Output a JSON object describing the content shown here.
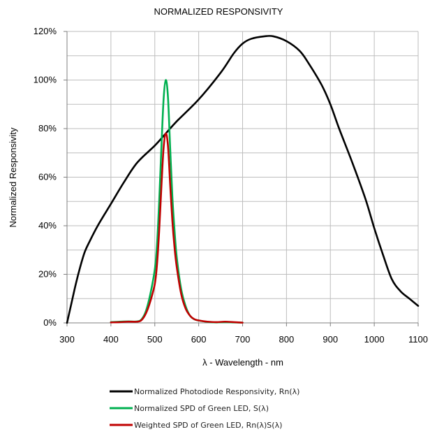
{
  "chart_data": {
    "type": "line",
    "title": "NORMALIZED RESPONSIVITY",
    "xlabel": "λ - Wavelength - nm",
    "ylabel": "Normalized Responsivity",
    "xlim": [
      300,
      1100
    ],
    "ylim": [
      0,
      120
    ],
    "x_ticks": [
      300,
      400,
      500,
      600,
      700,
      800,
      900,
      1000,
      1100
    ],
    "y_ticks": [
      0,
      20,
      40,
      60,
      80,
      100,
      120
    ],
    "y_tick_labels": [
      "0%",
      "20%",
      "40%",
      "60%",
      "80%",
      "100%",
      "120%"
    ],
    "grid": true,
    "legend_position": "bottom",
    "series": [
      {
        "name": "Normalized Photodiode Responsivity, Rn(λ)",
        "color": "#000000",
        "x": [
          300,
          310,
          320,
          330,
          340,
          350,
          370,
          400,
          430,
          460,
          500,
          525,
          550,
          600,
          650,
          680,
          700,
          720,
          750,
          770,
          800,
          830,
          850,
          880,
          900,
          920,
          950,
          980,
          1000,
          1020,
          1040,
          1060,
          1080,
          1100
        ],
        "y": [
          0,
          8,
          16,
          23,
          29,
          33,
          40,
          49,
          58,
          66,
          73,
          78,
          83,
          92,
          103,
          111,
          115,
          117,
          118,
          118,
          116,
          112,
          107,
          98,
          90,
          80,
          66,
          51,
          39,
          28,
          18,
          13,
          10,
          7
        ]
      },
      {
        "name": "Normalized SPD of Green LED, S(λ)",
        "color": "#00b050",
        "x": [
          400,
          420,
          440,
          460,
          470,
          480,
          490,
          500,
          505,
          510,
          515,
          520,
          525,
          530,
          535,
          540,
          545,
          550,
          560,
          570,
          580,
          590,
          600,
          620,
          640,
          660,
          680,
          700
        ],
        "y": [
          0.3,
          0.5,
          0.6,
          0.6,
          1.5,
          5,
          12,
          22,
          32,
          50,
          72,
          92,
          100,
          93,
          72,
          52,
          38,
          27,
          14,
          7,
          3,
          1.5,
          1,
          0.4,
          0.2,
          0.3,
          0.2,
          0.1
        ]
      },
      {
        "name": "Weighted SPD of Green LED, Rn(λ)S(λ)",
        "color": "#c00000",
        "x": [
          400,
          420,
          440,
          460,
          470,
          480,
          490,
          500,
          505,
          510,
          515,
          520,
          525,
          530,
          535,
          540,
          545,
          550,
          560,
          570,
          580,
          590,
          600,
          620,
          640,
          660,
          680,
          700
        ],
        "y": [
          0.2,
          0.3,
          0.5,
          0.5,
          1.2,
          4,
          9,
          16,
          24,
          38,
          56,
          72,
          78,
          73,
          57,
          42,
          31,
          23,
          12,
          6,
          3,
          1.5,
          1,
          0.5,
          0.3,
          0.5,
          0.3,
          0.1
        ]
      }
    ]
  }
}
